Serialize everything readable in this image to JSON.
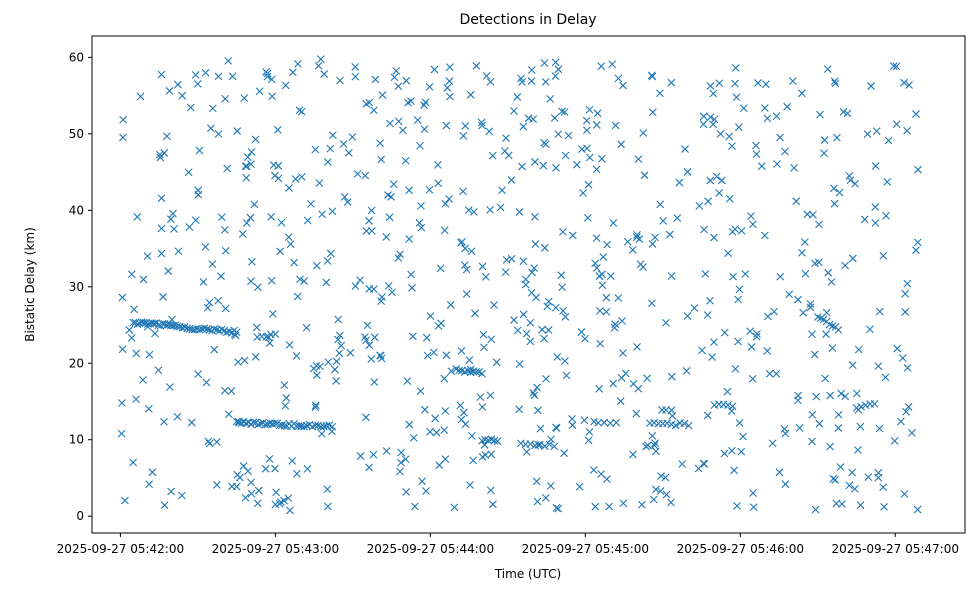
{
  "chart_data": {
    "type": "scatter",
    "title": "Detections in Delay",
    "xlabel": "Time (UTC)",
    "ylabel": "Bistatic Delay (km)",
    "marker": "x",
    "color": "#1f77b4",
    "grid": false,
    "legend": "none",
    "xlim": [
      "2025-09-27 05:41:49",
      "2025-09-27 05:47:27"
    ],
    "ylim": [
      -2.2,
      62.8
    ],
    "x_ticks": [
      "2025-09-27 05:42:00",
      "2025-09-27 05:43:00",
      "2025-09-27 05:44:00",
      "2025-09-27 05:45:00",
      "2025-09-27 05:46:00",
      "2025-09-27 05:47:00"
    ],
    "y_ticks": [
      0,
      10,
      20,
      30,
      40,
      50,
      60
    ],
    "tracks": [
      {
        "t_start": "2025-09-27 05:42:05",
        "t_end": "2025-09-27 05:42:22",
        "y_start": 25.3,
        "y_end": 24.9,
        "count": 22
      },
      {
        "t_start": "2025-09-27 05:42:23",
        "t_end": "2025-09-27 05:42:45",
        "y_start": 24.7,
        "y_end": 24.1,
        "count": 24
      },
      {
        "t_start": "2025-09-27 05:42:45",
        "t_end": "2025-09-27 05:43:10",
        "y_start": 12.2,
        "y_end": 11.9,
        "count": 28
      },
      {
        "t_start": "2025-09-27 05:43:10",
        "t_end": "2025-09-27 05:43:22",
        "y_start": 11.9,
        "y_end": 11.8,
        "count": 12
      },
      {
        "t_start": "2025-09-27 05:44:10",
        "t_end": "2025-09-27 05:44:20",
        "y_start": 19.1,
        "y_end": 18.7,
        "count": 10
      },
      {
        "t_start": "2025-09-27 05:44:20",
        "t_end": "2025-09-27 05:44:26",
        "y_start": 10.0,
        "y_end": 9.8,
        "count": 6
      },
      {
        "t_start": "2025-09-27 05:44:35",
        "t_end": "2025-09-27 05:44:48",
        "y_start": 9.5,
        "y_end": 9.2,
        "count": 8
      },
      {
        "t_start": "2025-09-27 05:45:25",
        "t_end": "2025-09-27 05:45:40",
        "y_start": 12.1,
        "y_end": 12.0,
        "count": 10
      },
      {
        "t_start": "2025-09-27 05:45:05",
        "t_end": "2025-09-27 05:45:12",
        "y_start": 12.3,
        "y_end": 12.1,
        "count": 4
      },
      {
        "t_start": "2025-09-27 05:46:30",
        "t_end": "2025-09-27 05:46:38",
        "y_start": 26.0,
        "y_end": 24.4,
        "count": 8
      },
      {
        "t_start": "2025-09-27 05:45:50",
        "t_end": "2025-09-27 05:45:57",
        "y_start": 14.6,
        "y_end": 14.5,
        "count": 5
      },
      {
        "t_start": "2025-09-27 05:46:45",
        "t_end": "2025-09-27 05:46:52",
        "y_start": 14.2,
        "y_end": 14.6,
        "count": 5
      },
      {
        "t_start": "2025-09-27 05:43:00",
        "t_end": "2025-09-27 05:43:05",
        "y_start": 1.5,
        "y_end": 2.2,
        "count": 4
      },
      {
        "t_start": "2025-09-27 05:42:53",
        "t_end": "2025-09-27 05:43:00",
        "y_start": 23.5,
        "y_end": 23.7,
        "count": 5
      }
    ],
    "clutter": {
      "count": 780,
      "t_range": [
        "2025-09-27 05:42:00",
        "2025-09-27 05:47:09"
      ],
      "y_range": [
        0.7,
        59.9
      ]
    }
  }
}
